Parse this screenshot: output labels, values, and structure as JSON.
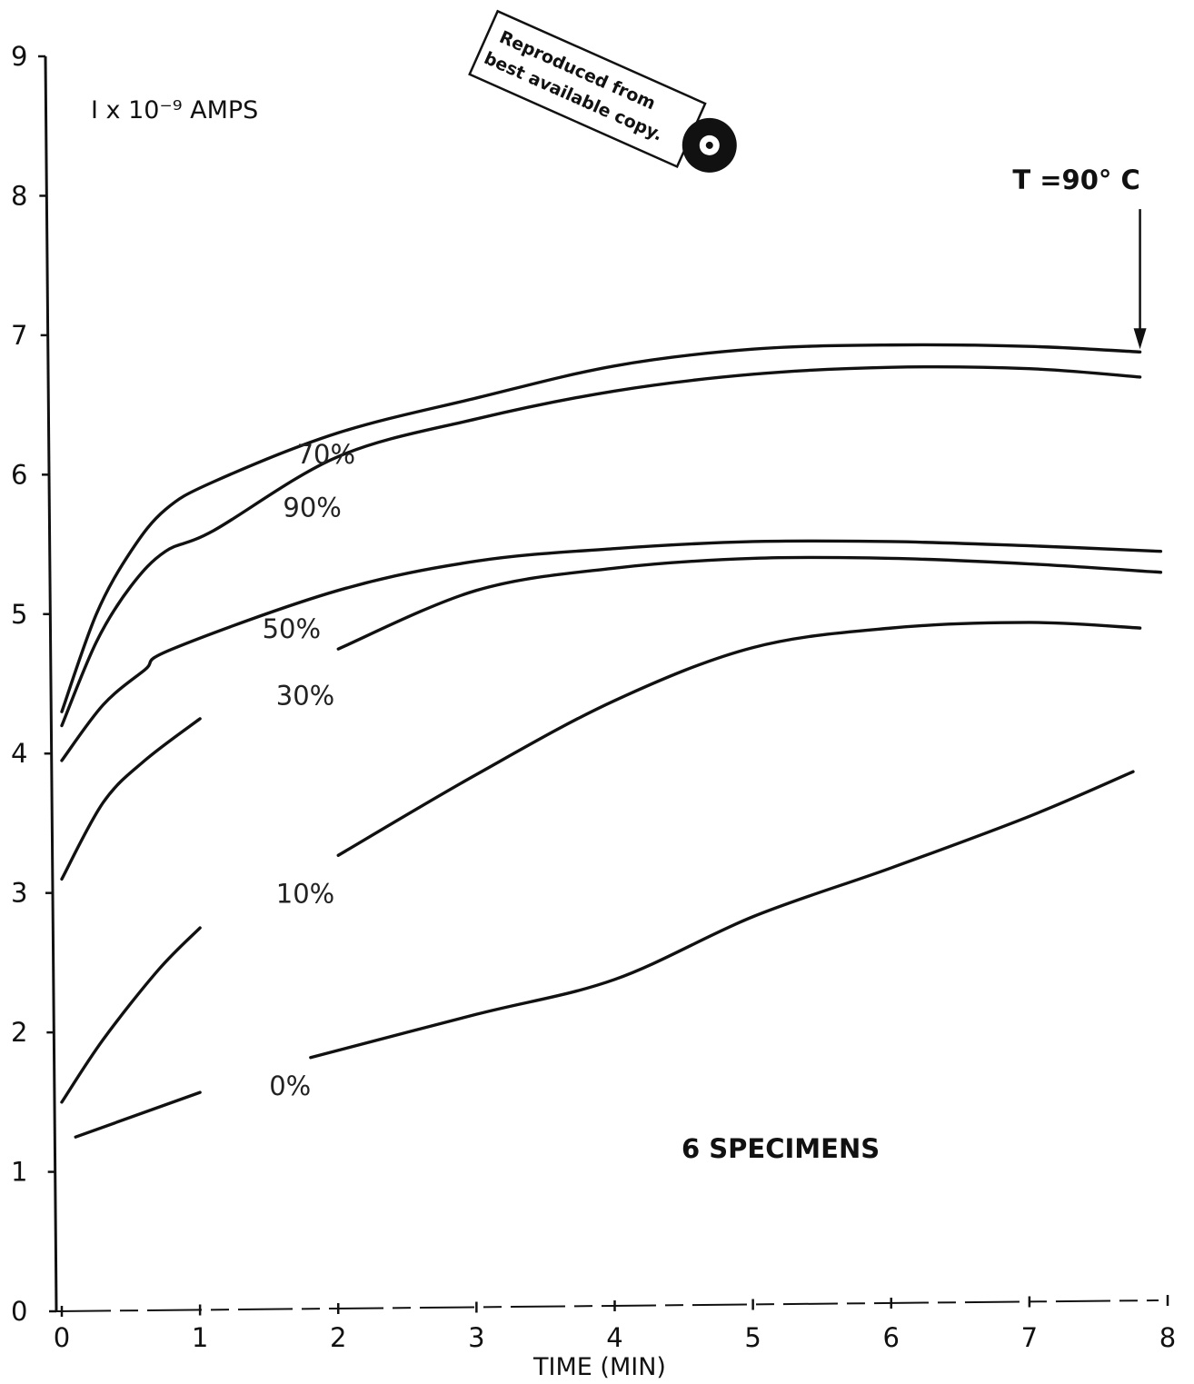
{
  "chart_data": {
    "type": "line",
    "title": "",
    "xlabel": "TIME (MIN)",
    "ylabel": "I x 10⁻⁹ AMPS",
    "xlim": [
      0,
      8
    ],
    "ylim": [
      0,
      9
    ],
    "x_ticks": [
      "0",
      "1",
      "2",
      "3",
      "4",
      "5",
      "6",
      "7",
      "8"
    ],
    "y_ticks": [
      "0",
      "1",
      "2",
      "3",
      "4",
      "5",
      "6",
      "7",
      "8",
      "9"
    ],
    "grid": false,
    "series": [
      {
        "name": "70%",
        "points": [
          [
            0.0,
            4.3
          ],
          [
            0.25,
            5.0
          ],
          [
            0.5,
            5.45
          ],
          [
            0.75,
            5.75
          ],
          [
            1.1,
            5.95
          ],
          [
            2.0,
            6.3
          ],
          [
            3.0,
            6.55
          ],
          [
            4.0,
            6.78
          ],
          [
            5.0,
            6.9
          ],
          [
            6.0,
            6.93
          ],
          [
            7.0,
            6.92
          ],
          [
            7.8,
            6.88
          ]
        ]
      },
      {
        "name": "90%",
        "points": [
          [
            0.0,
            4.2
          ],
          [
            0.25,
            4.8
          ],
          [
            0.5,
            5.2
          ],
          [
            0.75,
            5.45
          ],
          [
            1.1,
            5.6
          ],
          [
            2.0,
            6.13
          ],
          [
            3.0,
            6.4
          ],
          [
            4.0,
            6.6
          ],
          [
            5.0,
            6.72
          ],
          [
            6.0,
            6.77
          ],
          [
            7.0,
            6.76
          ],
          [
            7.8,
            6.7
          ]
        ]
      },
      {
        "name": "50%",
        "points": [
          [
            0.0,
            3.95
          ],
          [
            0.3,
            4.35
          ],
          [
            0.6,
            4.6
          ],
          [
            0.8,
            4.75
          ],
          [
            2.0,
            5.17
          ],
          [
            3.0,
            5.38
          ],
          [
            4.0,
            5.47
          ],
          [
            5.0,
            5.52
          ],
          [
            6.0,
            5.52
          ],
          [
            7.0,
            5.49
          ],
          [
            7.95,
            5.45
          ]
        ]
      },
      {
        "name": "30%",
        "points": [
          [
            2.0,
            4.75
          ],
          [
            3.0,
            5.17
          ],
          [
            4.0,
            5.33
          ],
          [
            5.0,
            5.4
          ],
          [
            6.0,
            5.4
          ],
          [
            7.0,
            5.36
          ],
          [
            7.95,
            5.3
          ]
        ]
      },
      {
        "name": "30%",
        "points": [
          [
            0.0,
            3.1
          ],
          [
            0.3,
            3.65
          ],
          [
            0.6,
            3.95
          ],
          [
            1.0,
            4.25
          ]
        ]
      },
      {
        "name": "10%",
        "points": [
          [
            2.0,
            3.27
          ],
          [
            3.0,
            3.85
          ],
          [
            4.0,
            4.38
          ],
          [
            5.0,
            4.76
          ],
          [
            6.0,
            4.9
          ],
          [
            7.0,
            4.94
          ],
          [
            7.8,
            4.9
          ]
        ]
      },
      {
        "name": "10%",
        "points": [
          [
            0.0,
            1.5
          ],
          [
            0.3,
            1.95
          ],
          [
            0.7,
            2.45
          ],
          [
            1.0,
            2.75
          ]
        ]
      },
      {
        "name": "0%",
        "points": [
          [
            0.1,
            1.25
          ],
          [
            1.0,
            1.57
          ]
        ]
      },
      {
        "name": "0%",
        "points": [
          [
            1.8,
            1.82
          ],
          [
            3.0,
            2.13
          ],
          [
            4.0,
            2.38
          ],
          [
            5.0,
            2.83
          ],
          [
            6.0,
            3.18
          ],
          [
            7.0,
            3.55
          ],
          [
            7.75,
            3.87
          ]
        ]
      }
    ],
    "labels": [
      {
        "text": "70%",
        "x": 1.7,
        "y": 6.08
      },
      {
        "text": "90%",
        "x": 1.6,
        "y": 5.7
      },
      {
        "text": "50%",
        "x": 1.45,
        "y": 4.83
      },
      {
        "text": "30%",
        "x": 1.55,
        "y": 4.35
      },
      {
        "text": "10%",
        "x": 1.55,
        "y": 2.93
      },
      {
        "text": "0%",
        "x": 1.5,
        "y": 1.55
      }
    ],
    "annotations": [
      {
        "text": "T =90° C",
        "x": 7.8,
        "y": 8.1
      },
      {
        "text": "6 SPECIMENS",
        "x": 5.2,
        "y": 1.1
      }
    ],
    "stamp": [
      "Reproduced from",
      "best available copy."
    ]
  }
}
